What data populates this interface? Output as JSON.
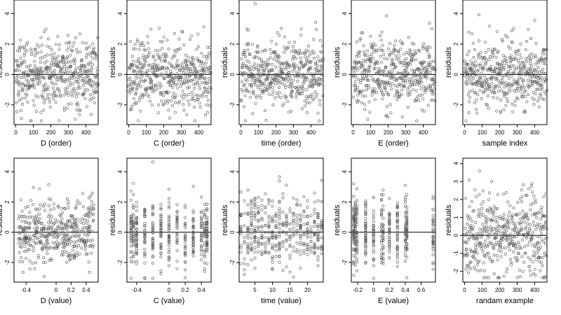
{
  "chart_data": [
    {
      "type": "scatter",
      "xlabel": "D (order)",
      "ylabel": "residuals",
      "x_ticks": [
        0,
        100,
        200,
        300,
        400
      ],
      "y_ticks": [
        -2,
        0,
        2,
        4
      ],
      "xlim": [
        -10,
        470
      ],
      "ylim": [
        -3.3,
        4.9
      ],
      "hline": 0,
      "n_points": 470,
      "x_mode": "order"
    },
    {
      "type": "scatter",
      "xlabel": "C (order)",
      "ylabel": "residuals",
      "x_ticks": [
        0,
        100,
        200,
        300,
        400
      ],
      "y_ticks": [
        -2,
        0,
        2,
        4
      ],
      "xlim": [
        -10,
        470
      ],
      "ylim": [
        -3.3,
        4.9
      ],
      "hline": 0,
      "n_points": 470,
      "x_mode": "order"
    },
    {
      "type": "scatter",
      "xlabel": "time (order)",
      "ylabel": "residuals",
      "x_ticks": [
        0,
        100,
        200,
        300,
        400
      ],
      "y_ticks": [
        -2,
        0,
        2,
        4
      ],
      "xlim": [
        -10,
        470
      ],
      "ylim": [
        -3.3,
        4.9
      ],
      "hline": 0,
      "n_points": 470,
      "x_mode": "order"
    },
    {
      "type": "scatter",
      "xlabel": "E (order)",
      "ylabel": "residuals",
      "x_ticks": [
        0,
        100,
        200,
        300,
        400
      ],
      "y_ticks": [
        -2,
        0,
        2,
        4
      ],
      "xlim": [
        -10,
        470
      ],
      "ylim": [
        -3.3,
        4.9
      ],
      "hline": 0,
      "n_points": 470,
      "x_mode": "order"
    },
    {
      "type": "scatter",
      "xlabel": "sample index",
      "ylabel": "residuals",
      "x_ticks": [
        0,
        100,
        200,
        300,
        400
      ],
      "y_ticks": [
        -2,
        0,
        2,
        4
      ],
      "xlim": [
        -10,
        470
      ],
      "ylim": [
        -3.3,
        4.9
      ],
      "hline": 0,
      "n_points": 470,
      "x_mode": "order"
    },
    {
      "type": "scatter",
      "xlabel": "D (value)",
      "ylabel": "residuals",
      "x_ticks": [
        -0.4,
        0.0,
        0.2,
        0.4
      ],
      "y_ticks": [
        -2,
        0,
        2,
        4
      ],
      "xlim": [
        -0.56,
        0.56
      ],
      "ylim": [
        -3.3,
        4.9
      ],
      "hline": 0,
      "n_points": 430,
      "x_mode": "continuous",
      "x_range": [
        -0.5,
        0.5
      ]
    },
    {
      "type": "scatter",
      "xlabel": "C (value)",
      "ylabel": "residuals",
      "x_ticks": [
        -0.4,
        0.0,
        0.2,
        0.4
      ],
      "y_ticks": [
        -2,
        0,
        2,
        4
      ],
      "xlim": [
        -0.52,
        0.52
      ],
      "ylim": [
        -3.3,
        4.9
      ],
      "hline": 0,
      "n_points": 430,
      "x_mode": "discrete",
      "x_levels": [
        -0.47,
        -0.44,
        -0.4,
        -0.3,
        -0.2,
        -0.1,
        0.0,
        0.1,
        0.2,
        0.3,
        0.4,
        0.44,
        0.47
      ]
    },
    {
      "type": "scatter",
      "xlabel": "time (value)",
      "ylabel": "residuals",
      "x_ticks": [
        5,
        10,
        15,
        20
      ],
      "y_ticks": [
        -2,
        0,
        2,
        4
      ],
      "xlim": [
        0.5,
        24.5
      ],
      "ylim": [
        -3.3,
        4.9
      ],
      "hline": 0,
      "n_points": 430,
      "x_mode": "discrete",
      "x_levels": [
        1,
        2,
        3,
        4,
        5,
        6,
        7,
        8,
        9,
        10,
        11,
        12,
        13,
        14,
        15,
        16,
        17,
        18,
        19,
        20,
        21,
        22,
        23,
        24
      ]
    },
    {
      "type": "scatter",
      "xlabel": "E (value)",
      "ylabel": "residuals",
      "x_ticks": [
        -0.2,
        0.0,
        0.2,
        0.4,
        0.6
      ],
      "y_ticks": [
        -2,
        0,
        2,
        4
      ],
      "xlim": [
        -0.28,
        0.78
      ],
      "ylim": [
        -3.3,
        4.9
      ],
      "hline": 0,
      "n_points": 430,
      "x_mode": "discrete",
      "x_levels": [
        -0.25,
        -0.23,
        -0.21,
        -0.1,
        0.0,
        0.1,
        0.12,
        0.2,
        0.3,
        0.4,
        0.42,
        0.75
      ]
    },
    {
      "type": "scatter",
      "xlabel": "randam example",
      "ylabel": "residuals",
      "x_ticks": [
        0,
        100,
        200,
        300,
        400
      ],
      "y_ticks": [
        -2,
        -1,
        0,
        1,
        2,
        3,
        4
      ],
      "xlim": [
        -10,
        470
      ],
      "ylim": [
        -2.6,
        4.3
      ],
      "hline": 0,
      "n_points": 470,
      "x_mode": "order"
    }
  ]
}
